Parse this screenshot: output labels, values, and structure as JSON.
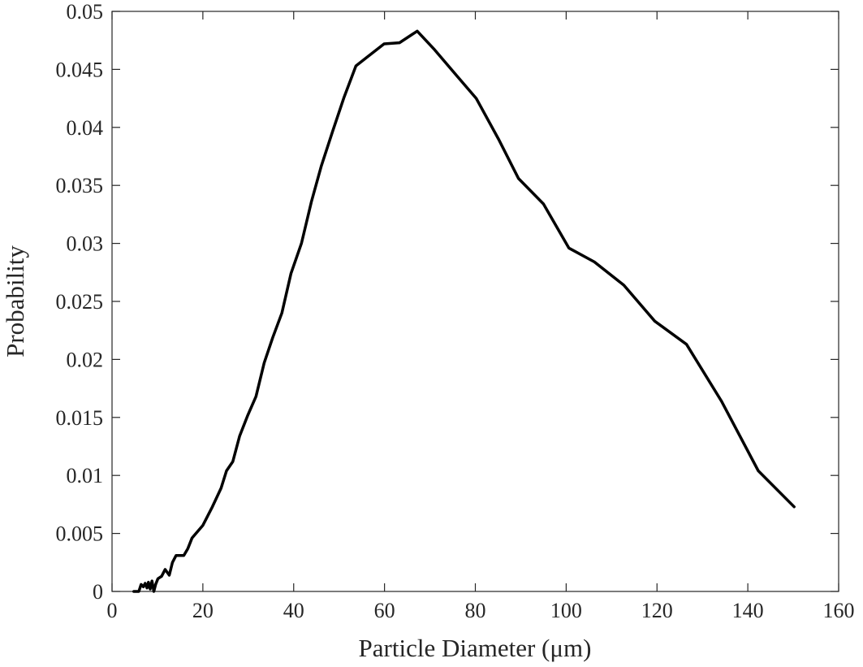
{
  "chart_data": {
    "type": "line",
    "title": "",
    "xlabel": "Particle Diameter (μm)",
    "ylabel": "Probability",
    "xlim": [
      0,
      160
    ],
    "ylim": [
      0,
      0.05
    ],
    "xticks": [
      0,
      20,
      40,
      60,
      80,
      100,
      120,
      140,
      160
    ],
    "yticks": [
      0,
      0.005,
      0.01,
      0.015,
      0.02,
      0.025,
      0.03,
      0.035,
      0.04,
      0.045,
      0.05
    ],
    "xtick_labels": [
      "0",
      "20",
      "40",
      "60",
      "80",
      "100",
      "120",
      "140",
      "160"
    ],
    "ytick_labels": [
      "0",
      "0.005",
      "0.01",
      "0.015",
      "0.02",
      "0.025",
      "0.03",
      "0.035",
      "0.04",
      "0.045",
      "0.05"
    ],
    "grid": false,
    "series": [
      {
        "color": "#000000",
        "x": [
          4.8,
          5.9,
          6.4,
          6.9,
          7.3,
          7.7,
          8.0,
          8.4,
          8.8,
          9.2,
          9.6,
          10.1,
          10.9,
          11.7,
          12.6,
          13.3,
          14.1,
          14.9,
          15.8,
          16.7,
          17.6,
          20.0,
          22.1,
          24.0,
          25.2,
          26.6,
          28.1,
          29.9,
          31.7,
          33.5,
          35.4,
          37.4,
          39.4,
          41.7,
          43.9,
          46.1,
          48.6,
          51.1,
          53.7,
          56.3,
          59.9,
          63.3,
          67.2,
          71.0,
          75.8,
          80.2,
          85.1,
          89.5,
          95.0,
          100.6,
          106.2,
          112.7,
          119.5,
          126.5,
          134.2,
          142.3,
          150.2
        ],
        "y": [
          0.0,
          0.0,
          0.0006,
          0.0004,
          0.0007,
          0.0003,
          0.0008,
          0.0002,
          0.0009,
          0.0,
          0.0006,
          0.0011,
          0.0013,
          0.0019,
          0.0014,
          0.0025,
          0.0031,
          0.0031,
          0.0031,
          0.0037,
          0.0046,
          0.0057,
          0.0073,
          0.0089,
          0.0104,
          0.0112,
          0.0134,
          0.0152,
          0.0168,
          0.0197,
          0.0219,
          0.024,
          0.0274,
          0.03,
          0.0336,
          0.0367,
          0.0397,
          0.0426,
          0.0453,
          0.0461,
          0.0472,
          0.0473,
          0.0483,
          0.0467,
          0.0445,
          0.0425,
          0.039,
          0.0356,
          0.0334,
          0.0296,
          0.0284,
          0.0264,
          0.0233,
          0.0213,
          0.0164,
          0.0104,
          0.0073
        ]
      }
    ]
  }
}
